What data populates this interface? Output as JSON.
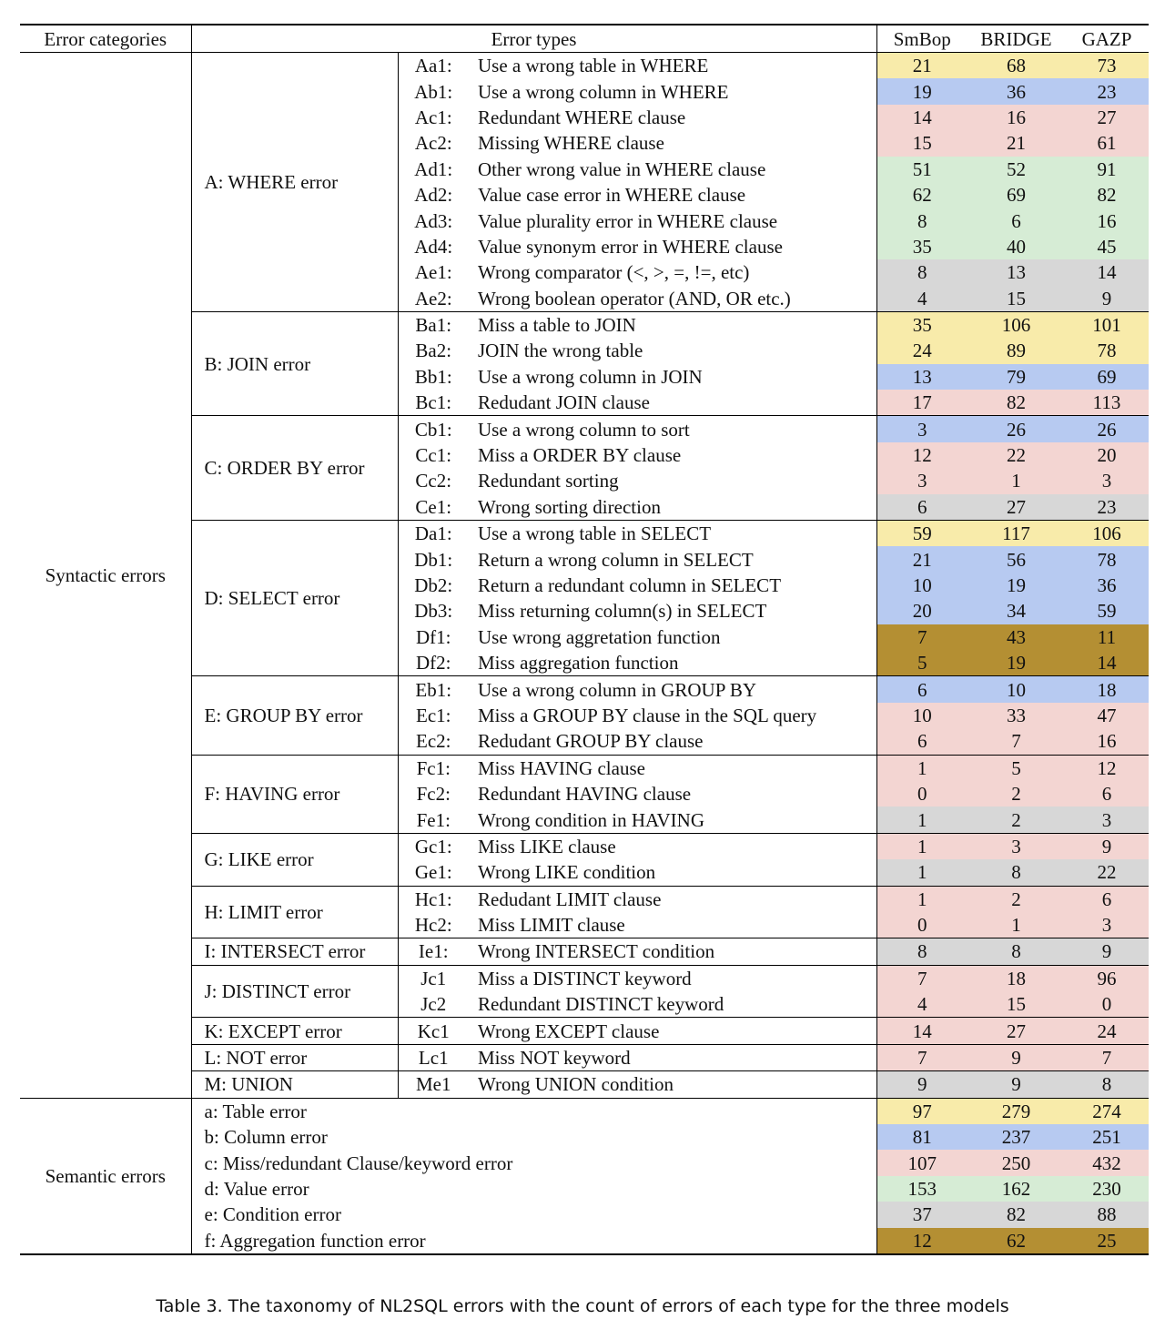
{
  "table": {
    "headers": [
      "Error categories",
      "Error types",
      "SmBop",
      "BRIDGE",
      "GAZP"
    ],
    "syntactic": {
      "label": "Syntactic errors",
      "groups": [
        {
          "name": "A: WHERE error",
          "rows": [
            {
              "code": "Aa1:",
              "text": "Use a wrong table in WHERE",
              "counts": [
                21,
                68,
                73
              ],
              "color": "#f8ebaa"
            },
            {
              "code": "Ab1:",
              "text": "Use a wrong column in WHERE",
              "counts": [
                19,
                36,
                23
              ],
              "color": "#b7caf1"
            },
            {
              "code": "Ac1:",
              "text": "Redundant WHERE clause",
              "counts": [
                14,
                16,
                27
              ],
              "color": "#f3d5d2"
            },
            {
              "code": "Ac2:",
              "text": "Missing WHERE clause",
              "counts": [
                15,
                21,
                61
              ],
              "color": "#f3d5d2"
            },
            {
              "code": "Ad1:",
              "text": "Other wrong value in WHERE clause",
              "counts": [
                51,
                52,
                91
              ],
              "color": "#d6ecd5"
            },
            {
              "code": "Ad2:",
              "text": "Value case error in WHERE clause",
              "counts": [
                62,
                69,
                82
              ],
              "color": "#d6ecd5"
            },
            {
              "code": "Ad3:",
              "text": "Value plurality error in WHERE clause",
              "counts": [
                8,
                6,
                16
              ],
              "color": "#d6ecd5"
            },
            {
              "code": "Ad4:",
              "text": "Value synonym error in WHERE clause",
              "counts": [
                35,
                40,
                45
              ],
              "color": "#d6ecd5"
            },
            {
              "code": "Ae1:",
              "text": "Wrong comparator (<, >, =, !=, etc)",
              "counts": [
                8,
                13,
                14
              ],
              "color": "#d7d7d7"
            },
            {
              "code": "Ae2:",
              "text": "Wrong boolean operator (AND, OR etc.)",
              "counts": [
                4,
                15,
                9
              ],
              "color": "#d7d7d7"
            }
          ]
        },
        {
          "name": "B: JOIN error",
          "rows": [
            {
              "code": "Ba1:",
              "text": "Miss a table to JOIN",
              "counts": [
                35,
                106,
                101
              ],
              "color": "#f8ebaa"
            },
            {
              "code": "Ba2:",
              "text": "JOIN the wrong table",
              "counts": [
                24,
                89,
                78
              ],
              "color": "#f8ebaa"
            },
            {
              "code": "Bb1:",
              "text": "Use a wrong column in JOIN",
              "counts": [
                13,
                79,
                69
              ],
              "color": "#b7caf1"
            },
            {
              "code": "Bc1:",
              "text": "Redudant JOIN clause",
              "counts": [
                17,
                82,
                113
              ],
              "color": "#f3d5d2"
            }
          ]
        },
        {
          "name": "C: ORDER BY error",
          "rows": [
            {
              "code": "Cb1:",
              "text": "Use a wrong column to sort",
              "counts": [
                3,
                26,
                26
              ],
              "color": "#b7caf1"
            },
            {
              "code": "Cc1:",
              "text": "Miss a ORDER BY clause",
              "counts": [
                12,
                22,
                20
              ],
              "color": "#f3d5d2"
            },
            {
              "code": "Cc2:",
              "text": "Redundant sorting",
              "counts": [
                3,
                1,
                3
              ],
              "color": "#f3d5d2"
            },
            {
              "code": "Ce1:",
              "text": "Wrong sorting direction",
              "counts": [
                6,
                27,
                23
              ],
              "color": "#d7d7d7"
            }
          ]
        },
        {
          "name": "D: SELECT error",
          "rows": [
            {
              "code": "Da1:",
              "text": "Use a wrong table in SELECT",
              "counts": [
                59,
                117,
                106
              ],
              "color": "#f8ebaa"
            },
            {
              "code": "Db1:",
              "text": "Return a wrong column in SELECT",
              "counts": [
                21,
                56,
                78
              ],
              "color": "#b7caf1"
            },
            {
              "code": "Db2:",
              "text": "Return a redundant column in SELECT",
              "counts": [
                10,
                19,
                36
              ],
              "color": "#b7caf1"
            },
            {
              "code": "Db3:",
              "text": "Miss returning column(s) in SELECT",
              "counts": [
                20,
                34,
                59
              ],
              "color": "#b7caf1"
            },
            {
              "code": "Df1:",
              "text": "Use wrong aggretation function",
              "counts": [
                7,
                43,
                11
              ],
              "color": "#b48f33"
            },
            {
              "code": "Df2:",
              "text": "Miss aggregation function",
              "counts": [
                5,
                19,
                14
              ],
              "color": "#b48f33"
            }
          ]
        },
        {
          "name": "E: GROUP BY error",
          "rows": [
            {
              "code": "Eb1:",
              "text": "Use a wrong column in GROUP BY",
              "counts": [
                6,
                10,
                18
              ],
              "color": "#b7caf1"
            },
            {
              "code": "Ec1:",
              "text": "Miss a GROUP BY clause in the SQL query",
              "counts": [
                10,
                33,
                47
              ],
              "color": "#f3d5d2"
            },
            {
              "code": "Ec2:",
              "text": "Redudant GROUP BY clause",
              "counts": [
                6,
                7,
                16
              ],
              "color": "#f3d5d2"
            }
          ]
        },
        {
          "name": "F: HAVING error",
          "rows": [
            {
              "code": "Fc1:",
              "text": "Miss HAVING clause",
              "counts": [
                1,
                5,
                12
              ],
              "color": "#f3d5d2"
            },
            {
              "code": "Fc2:",
              "text": "Redundant HAVING clause",
              "counts": [
                0,
                2,
                6
              ],
              "color": "#f3d5d2"
            },
            {
              "code": "Fe1:",
              "text": "Wrong condition in HAVING",
              "counts": [
                1,
                2,
                3
              ],
              "color": "#d7d7d7"
            }
          ]
        },
        {
          "name": "G: LIKE error",
          "rows": [
            {
              "code": "Gc1:",
              "text": "Miss LIKE clause",
              "counts": [
                1,
                3,
                9
              ],
              "color": "#f3d5d2"
            },
            {
              "code": "Ge1:",
              "text": "Wrong LIKE condition",
              "counts": [
                1,
                8,
                22
              ],
              "color": "#d7d7d7"
            }
          ]
        },
        {
          "name": "H: LIMIT error",
          "rows": [
            {
              "code": "Hc1:",
              "text": "Redudant LIMIT clause",
              "counts": [
                1,
                2,
                6
              ],
              "color": "#f3d5d2"
            },
            {
              "code": "Hc2:",
              "text": "Miss LIMIT clause",
              "counts": [
                0,
                1,
                3
              ],
              "color": "#f3d5d2"
            }
          ]
        },
        {
          "name": "I: INTERSECT error",
          "rows": [
            {
              "code": "Ie1:",
              "text": "Wrong INTERSECT condition",
              "counts": [
                8,
                8,
                9
              ],
              "color": "#d7d7d7"
            }
          ]
        },
        {
          "name": "J: DISTINCT error",
          "rows": [
            {
              "code": "Jc1",
              "text": "Miss a DISTINCT keyword",
              "counts": [
                7,
                18,
                96
              ],
              "color": "#f3d5d2"
            },
            {
              "code": "Jc2",
              "text": "Redundant DISTINCT keyword",
              "counts": [
                4,
                15,
                0
              ],
              "color": "#f3d5d2"
            }
          ]
        },
        {
          "name": "K: EXCEPT error",
          "rows": [
            {
              "code": "Kc1",
              "text": "Wrong EXCEPT clause",
              "counts": [
                14,
                27,
                24
              ],
              "color": "#f3d5d2"
            }
          ]
        },
        {
          "name": "L: NOT error",
          "rows": [
            {
              "code": "Lc1",
              "text": "Miss NOT keyword",
              "counts": [
                7,
                9,
                7
              ],
              "color": "#f3d5d2"
            }
          ]
        },
        {
          "name": "M: UNION",
          "rows": [
            {
              "code": "Me1",
              "text": "Wrong UNION condition",
              "counts": [
                9,
                9,
                8
              ],
              "color": "#d7d7d7"
            }
          ]
        }
      ]
    },
    "semantic": {
      "label": "Semantic errors",
      "rows": [
        {
          "text": "a: Table error",
          "counts": [
            97,
            279,
            274
          ],
          "color": "#f8ebaa"
        },
        {
          "text": "b: Column error",
          "counts": [
            81,
            237,
            251
          ],
          "color": "#b7caf1"
        },
        {
          "text": "c: Miss/redundant Clause/keyword error",
          "counts": [
            107,
            250,
            432
          ],
          "color": "#f3d5d2"
        },
        {
          "text": "d: Value error",
          "counts": [
            153,
            162,
            230
          ],
          "color": "#d6ecd5"
        },
        {
          "text": "e: Condition error",
          "counts": [
            37,
            82,
            88
          ],
          "color": "#d7d7d7"
        },
        {
          "text": "f: Aggregation function error",
          "counts": [
            12,
            62,
            25
          ],
          "color": "#b48f33"
        }
      ]
    }
  },
  "caption": "Table 3.  The taxonomy of NL2SQL errors with the count of errors of each type for the three models"
}
